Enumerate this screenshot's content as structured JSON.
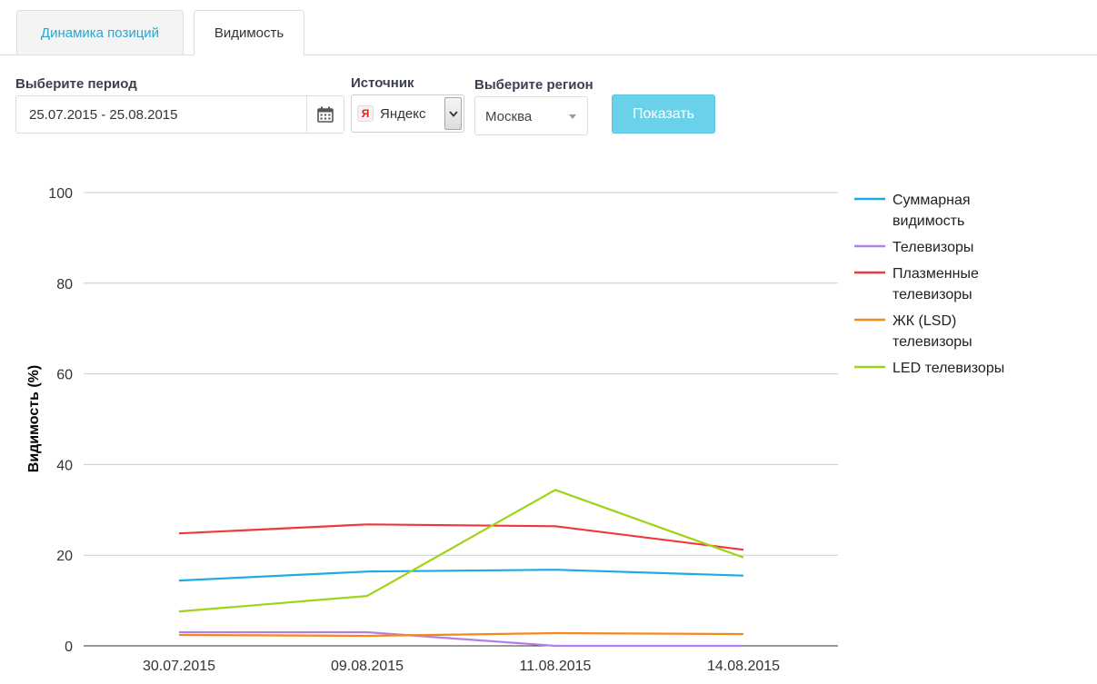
{
  "tabs": [
    {
      "label": "Динамика позиций",
      "active": false
    },
    {
      "label": "Видимость",
      "active": true
    }
  ],
  "filters": {
    "period_label": "Выберите период",
    "period_value": "25.07.2015 - 25.08.2015",
    "source_label": "Источник",
    "source_value": "Яндекс",
    "source_icon": "yandex-icon",
    "region_label": "Выберите регион",
    "region_value": "Москва",
    "show_button": "Показать"
  },
  "colors": {
    "tab_link": "#2aa6cf",
    "button": "#69d2ea"
  },
  "chart_data": {
    "type": "line",
    "title": "",
    "xlabel": "",
    "ylabel": "Видимость (%)",
    "ylim": [
      0,
      100
    ],
    "yticks": [
      0,
      20,
      40,
      60,
      80,
      100
    ],
    "grid": true,
    "legend_position": "right",
    "categories": [
      "30.07.2015",
      "09.08.2015",
      "11.08.2015",
      "14.08.2015"
    ],
    "series": [
      {
        "name": "Суммарная видимость",
        "color": "#1aace3",
        "values": [
          14.4,
          16.4,
          16.8,
          15.5
        ]
      },
      {
        "name": "Телевизоры",
        "color": "#b57ee6",
        "values": [
          3.0,
          3.0,
          0.0,
          0.0
        ]
      },
      {
        "name": "Плазменные телевизоры",
        "color": "#ee3a3a",
        "values": [
          24.8,
          26.8,
          26.4,
          21.2
        ]
      },
      {
        "name": "ЖК (LSD) телевизоры",
        "color": "#f28a1a",
        "values": [
          2.4,
          2.2,
          2.8,
          2.6
        ]
      },
      {
        "name": "LED телевизоры",
        "color": "#9ed416",
        "values": [
          7.6,
          11.0,
          34.4,
          19.5
        ]
      }
    ]
  }
}
